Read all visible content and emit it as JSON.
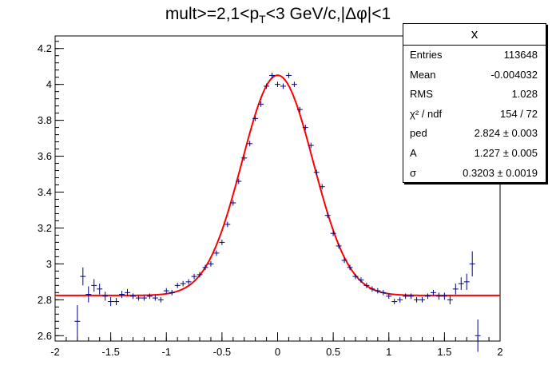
{
  "title": {
    "prefix": "mult>=2,1<p",
    "sub": "T",
    "suffix": "<3 GeV/c,|Δφ|<1"
  },
  "stats": {
    "name": "x",
    "rows": [
      {
        "key": "Entries",
        "value": "113648"
      },
      {
        "key": "Mean",
        "value": "-0.004032"
      },
      {
        "key": "RMS",
        "value": "1.028"
      },
      {
        "key": "χ² / ndf",
        "value": "154 / 72"
      },
      {
        "key": "ped",
        "value": "2.824 ± 0.003"
      },
      {
        "key": "A",
        "value": "1.227 ± 0.005"
      },
      {
        "key": "σ",
        "value": "0.3203 ± 0.0019"
      }
    ]
  },
  "colors": {
    "points": "#000080",
    "fit": "#ff0000",
    "axis": "#000000"
  },
  "chart_data": {
    "type": "scatter",
    "title": "mult>=2,1<pT<3 GeV/c,|Δφ|<1",
    "xlim": [
      -2,
      2
    ],
    "ylim": [
      2.57,
      4.27
    ],
    "xticks": [
      "-2",
      "-1.5",
      "-1",
      "-0.5",
      "0",
      "0.5",
      "1",
      "1.5",
      "2"
    ],
    "xtick_values": [
      -2,
      -1.5,
      -1,
      -0.5,
      0,
      0.5,
      1,
      1.5,
      2
    ],
    "yticks": [
      "2.6",
      "2.8",
      "3",
      "3.2",
      "3.4",
      "3.6",
      "3.8",
      "4",
      "4.2"
    ],
    "ytick_values": [
      2.6,
      2.8,
      3.0,
      3.2,
      3.4,
      3.6,
      3.8,
      4.0,
      4.2
    ],
    "series": [
      {
        "type": "errorbar",
        "bin_width": 0.05,
        "x": [
          -1.8,
          -1.75,
          -1.7,
          -1.65,
          -1.6,
          -1.55,
          -1.5,
          -1.45,
          -1.4,
          -1.35,
          -1.3,
          -1.25,
          -1.2,
          -1.15,
          -1.1,
          -1.05,
          -1.0,
          -0.95,
          -0.9,
          -0.85,
          -0.8,
          -0.75,
          -0.7,
          -0.65,
          -0.6,
          -0.55,
          -0.5,
          -0.45,
          -0.4,
          -0.35,
          -0.3,
          -0.25,
          -0.2,
          -0.15,
          -0.1,
          -0.05,
          0.0,
          0.05,
          0.1,
          0.15,
          0.2,
          0.25,
          0.3,
          0.35,
          0.4,
          0.45,
          0.5,
          0.55,
          0.6,
          0.65,
          0.7,
          0.75,
          0.8,
          0.85,
          0.9,
          0.95,
          1.0,
          1.05,
          1.1,
          1.15,
          1.2,
          1.25,
          1.3,
          1.35,
          1.4,
          1.45,
          1.5,
          1.55,
          1.6,
          1.65,
          1.7,
          1.75,
          1.8
        ],
        "y": [
          2.68,
          2.93,
          2.83,
          2.88,
          2.86,
          2.82,
          2.79,
          2.79,
          2.83,
          2.84,
          2.82,
          2.81,
          2.81,
          2.82,
          2.81,
          2.8,
          2.85,
          2.84,
          2.88,
          2.89,
          2.9,
          2.93,
          2.94,
          2.98,
          3.0,
          3.06,
          3.12,
          3.22,
          3.34,
          3.46,
          3.59,
          3.67,
          3.81,
          3.89,
          3.99,
          4.05,
          4.0,
          3.99,
          4.05,
          4.0,
          3.86,
          3.76,
          3.66,
          3.51,
          3.43,
          3.27,
          3.17,
          3.1,
          3.02,
          2.98,
          2.93,
          2.91,
          2.88,
          2.86,
          2.85,
          2.84,
          2.82,
          2.79,
          2.8,
          2.82,
          2.82,
          2.8,
          2.8,
          2.82,
          2.84,
          2.82,
          2.82,
          2.8,
          2.86,
          2.89,
          2.9,
          3.0,
          2.6
        ],
        "err": [
          0.09,
          0.05,
          0.045,
          0.035,
          0.03,
          0.025,
          0.025,
          0.02,
          0.02,
          0.02,
          0.015,
          0.015,
          0.015,
          0.015,
          0.015,
          0.015,
          0.015,
          0.015,
          0.015,
          0.015,
          0.015,
          0.015,
          0.015,
          0.015,
          0.015,
          0.015,
          0.015,
          0.015,
          0.015,
          0.015,
          0.015,
          0.015,
          0.015,
          0.015,
          0.015,
          0.015,
          0.015,
          0.015,
          0.015,
          0.015,
          0.015,
          0.015,
          0.015,
          0.015,
          0.015,
          0.015,
          0.015,
          0.015,
          0.015,
          0.015,
          0.015,
          0.015,
          0.015,
          0.015,
          0.015,
          0.015,
          0.015,
          0.015,
          0.015,
          0.015,
          0.015,
          0.015,
          0.015,
          0.015,
          0.015,
          0.02,
          0.02,
          0.025,
          0.03,
          0.035,
          0.045,
          0.07,
          0.09
        ]
      },
      {
        "type": "fit",
        "function": "gaussian_plus_pedestal",
        "ped": 2.824,
        "A": 1.227,
        "sigma": 0.3203,
        "range": [
          -2,
          2
        ]
      }
    ]
  }
}
